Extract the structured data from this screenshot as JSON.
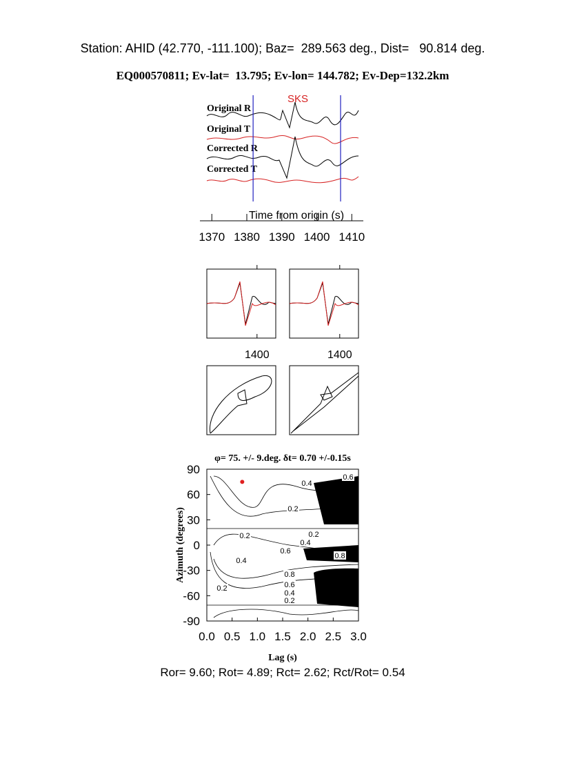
{
  "header": {
    "station": "Station: AHID (42.770, -111.100); Baz=  289.563 deg., Dist=   90.814 deg.",
    "event": "EQ000570811; Ev-lat=  13.795; Ev-lon= 144.782; Ev-Dep=132.2km"
  },
  "chart_data": [
    {
      "type": "seismogram",
      "phase": "SKS",
      "phase_color": "#d62020",
      "traces": [
        "Original R",
        "Original T",
        "Corrected R",
        "Corrected T"
      ],
      "xlabel": "Time from origin (s)",
      "xlim": [
        1366.6,
        1413.3
      ],
      "xticks": [
        1370,
        1380,
        1390,
        1400,
        1410
      ],
      "window": [
        1381.8,
        1406.8
      ],
      "window_color": "#2020c0"
    },
    {
      "type": "panels",
      "xlim": [
        1381.8,
        1406.8
      ],
      "xticks": [
        1400
      ]
    },
    {
      "type": "contour",
      "title": "φ= 75. +/- 9.deg. δt= 0.70 +/-0.15s",
      "xlabel": "Lag (s)",
      "ylabel": "Azimuth (degrees)",
      "xlim": [
        0,
        3
      ],
      "xticks": [
        {
          "value": 0,
          "label": "0.0"
        },
        0.5,
        {
          "value": 1,
          "label": "1.0"
        },
        1.5,
        {
          "value": 2,
          "label": "2.0"
        },
        2.5,
        {
          "value": 3,
          "label": "3.0"
        }
      ],
      "ylim": [
        -90,
        90
      ],
      "yticks": [
        -90,
        -60,
        -30,
        0,
        30,
        60,
        90
      ],
      "contour_labels": [
        0.6,
        0.4,
        0.2,
        0.2,
        0.2,
        0.4,
        0.6,
        0.8,
        0.4,
        0.8,
        0.6,
        0.4,
        0.2,
        0.2
      ],
      "point": {
        "x": 0.7,
        "y": 75,
        "color": "#e02020"
      }
    }
  ],
  "footer": "Ror= 9.60; Rot= 4.89; Rct= 2.62; Rct/Rot= 0.54"
}
